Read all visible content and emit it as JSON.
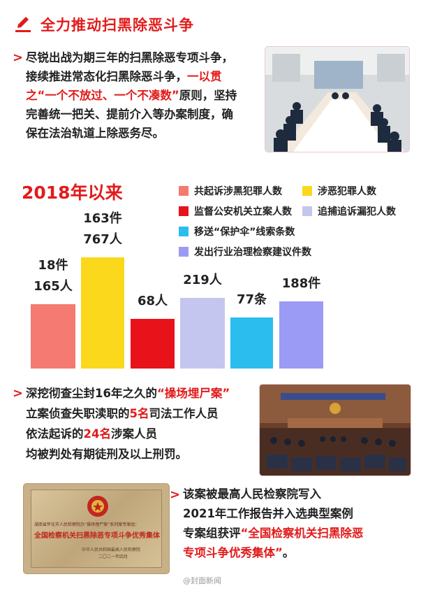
{
  "header": {
    "title": "全力推动扫黑除恶斗争",
    "icon": "pencil-icon",
    "accent": "#e21b1b"
  },
  "intro": {
    "line1": "尽锐出战为期三年的扫黑除恶专项斗争，",
    "line2_a": "接续推进常态化扫黑除恶斗争，",
    "line2_red": "一以贯",
    "line3_red": "之“一个不放过、一个不凑数”",
    "line3_b": "原则，坚持",
    "line4": "完善统一把关、提前介入等办案制度，确",
    "line5": "保在法治轨道上除恶务尽。"
  },
  "chart_data": {
    "type": "bar",
    "title": "2018年以来",
    "categories": [
      "共起诉涉黑犯罪人数",
      "涉恶犯罪人数",
      "监督公安机关立案人数",
      "追捕追诉漏犯人数",
      "移送“保护伞”线索条数",
      "发出行业治理检察建议件数"
    ],
    "values": [
      165,
      767,
      68,
      219,
      77,
      188
    ],
    "colors": [
      "#f47a72",
      "#fbd81c",
      "#e8121b",
      "#c5c6ef",
      "#2cbdef",
      "#9b9af4"
    ],
    "bar_labels": [
      [
        "18件",
        "165人"
      ],
      [
        "163件",
        "767人"
      ],
      [
        "68人"
      ],
      [
        "219人"
      ],
      [
        "77条"
      ],
      [
        "188件"
      ]
    ]
  },
  "section2": {
    "line1_a": "深挖彻查尘封16年之久的",
    "line1_red": "“操场埋尸案”",
    "line2_a": "立案侦查失职渎职的",
    "line2_red": "5名",
    "line2_b": "司法工作人员",
    "line3_a": "依法起诉的",
    "line3_red": "24名",
    "line3_b": "涉案人员",
    "line4": "均被判处有期徒刑及以上刑罚。"
  },
  "section3": {
    "line1": "该案被最高人民检察院写入",
    "line2": "2021年工作报告并入选典型案例",
    "line3_a": "专案组获评",
    "line3_red": "“全国检察机关扫黑除恶",
    "line4_red": "专项斗争优秀集体”",
    "line4_b": "。"
  },
  "plaque": {
    "top_text": "湖南省怀化市人民检察院办“操场埋尸案”系列案专案组：",
    "main_text": "全国检察机关扫黑除恶专项斗争优秀集体",
    "org": "中华人民共和国最高人民检察院",
    "date": "二〇二一年四月"
  },
  "watermark": {
    "text": "@封面新闻"
  }
}
